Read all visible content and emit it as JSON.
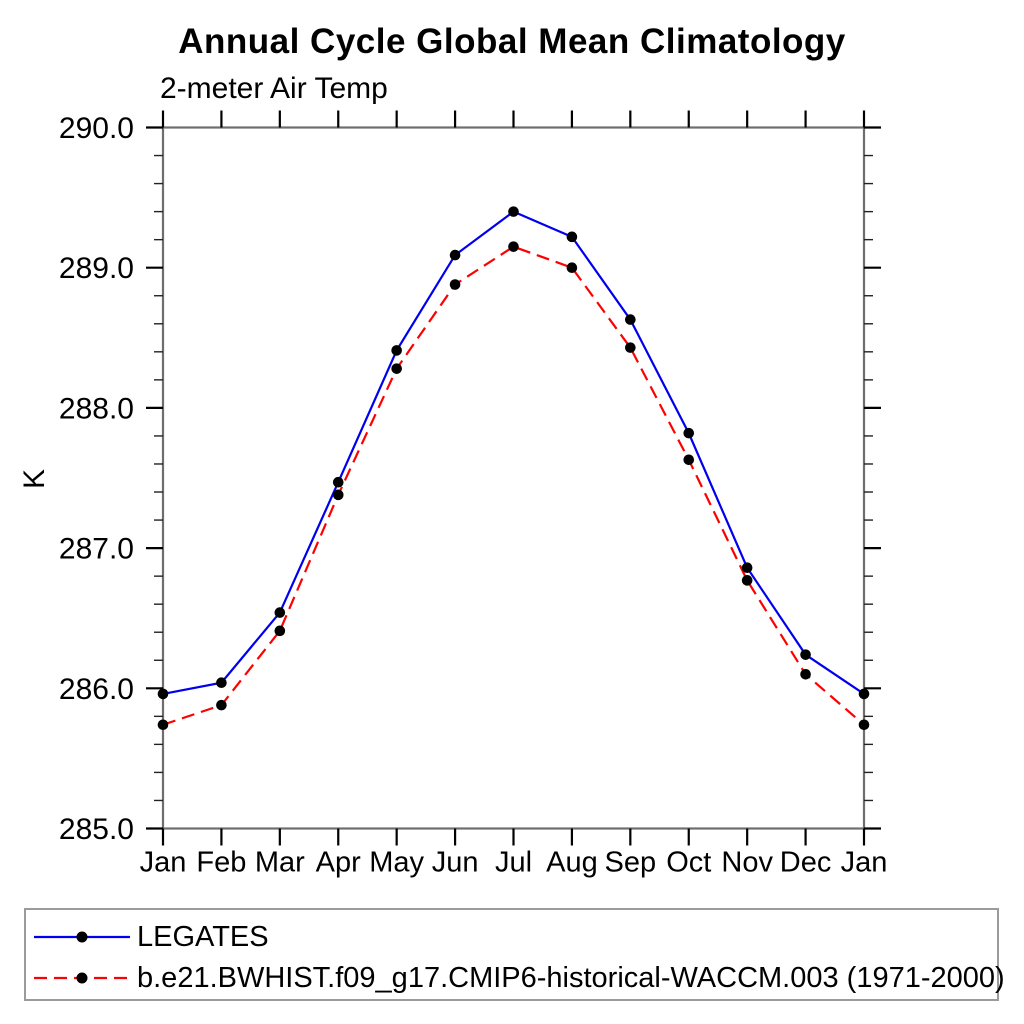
{
  "title": "Annual Cycle Global Mean Climatology",
  "subtitle": "2-meter Air Temp",
  "ylabel": "K",
  "legend": {
    "position": "bottom",
    "items": [
      {
        "label": "LEGATES",
        "color": "#0000ee",
        "dasharray": "none",
        "marker": "black-dot"
      },
      {
        "label": "b.e21.BWHIST.f09_g17.CMIP6-historical-WACCM.003 (1971-2000)",
        "color": "#ff0000",
        "dasharray": "13 7",
        "marker": "black-dot"
      }
    ]
  },
  "chart_data": {
    "type": "line",
    "title": "Annual Cycle Global Mean Climatology",
    "subtitle": "2-meter Air Temp",
    "xlabel": "",
    "ylabel": "K",
    "categories": [
      "Jan",
      "Feb",
      "Mar",
      "Apr",
      "May",
      "Jun",
      "Jul",
      "Aug",
      "Sep",
      "Oct",
      "Nov",
      "Dec",
      "Jan"
    ],
    "series": [
      {
        "name": "LEGATES",
        "color": "#0000ee",
        "line_style": "solid",
        "marker": "black-dot",
        "values": [
          285.96,
          286.04,
          286.54,
          287.47,
          288.41,
          289.09,
          289.4,
          289.22,
          288.63,
          287.82,
          286.86,
          286.24,
          285.96
        ]
      },
      {
        "name": "b.e21.BWHIST.f09_g17.CMIP6-historical-WACCM.003 (1971-2000)",
        "color": "#ff0000",
        "line_style": "dashed",
        "marker": "black-dot",
        "values": [
          285.74,
          285.88,
          286.41,
          287.38,
          288.28,
          288.88,
          289.15,
          289.0,
          288.43,
          287.63,
          286.77,
          286.1,
          285.74
        ]
      }
    ],
    "ylim": [
      285.0,
      290.0
    ],
    "ytick_major_interval": 1.0,
    "ytick_minor_interval": 0.2,
    "ytick_label_format": "1-decimal",
    "grid": false,
    "legend_position": "bottom"
  },
  "colors": {
    "frame": "#6e6e6e",
    "tick": "#000000",
    "minor_tick": "#222222",
    "legend_border": "#9b9b9b",
    "marker": "#000000"
  }
}
